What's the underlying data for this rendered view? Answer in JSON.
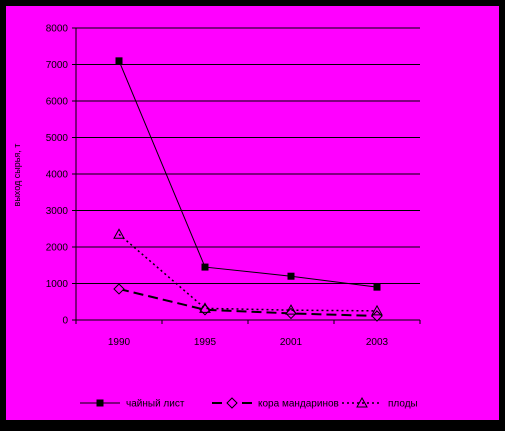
{
  "chart_data": {
    "type": "line",
    "title": "",
    "xlabel": "",
    "ylabel": "выход сырья, т",
    "categories": [
      "1990",
      "1995",
      "2001",
      "2003"
    ],
    "ylim": [
      0,
      8000
    ],
    "yticks": [
      "0",
      "1000",
      "2000",
      "3000",
      "4000",
      "5000",
      "6000",
      "7000",
      "8000"
    ],
    "grid": true,
    "legend_position": "bottom",
    "series": [
      {
        "name": "чайный лист",
        "values": [
          7100,
          1450,
          1200,
          900
        ],
        "marker": "square",
        "line": "solid"
      },
      {
        "name": "кора мандаринов",
        "values": [
          850,
          280,
          180,
          110
        ],
        "marker": "diamond",
        "line": "dashed"
      },
      {
        "name": "плоды",
        "values": [
          2350,
          320,
          270,
          250
        ],
        "marker": "triangle",
        "line": "dotted"
      }
    ]
  },
  "colors": {
    "outer_background": "#000000",
    "chart_area": "#ff00ff",
    "lines": "#000000"
  }
}
